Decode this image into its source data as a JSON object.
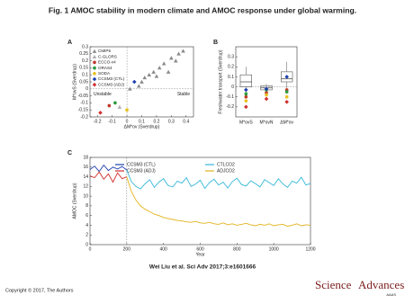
{
  "title": "Fig. 1 AMOC stability in modern climate and AMOC response under global warming.",
  "citation": "Wei Liu et al. Sci Adv 2017;3:e1601666",
  "copyright": "Copyright © 2017, The Authors",
  "logo": {
    "word1": "Science",
    "word2": "Advances",
    "org": "AAAS"
  },
  "chart_data": [
    {
      "type": "scatter",
      "panel": "A",
      "x_label": "ΔM*ov (Sverdrup)",
      "y_label": "M*ovS (Sverdrup)",
      "annotations": [
        "Unstable",
        "Stable"
      ],
      "xlim": [
        -0.25,
        0.45
      ],
      "xticks": [
        -0.2,
        -0.1,
        0,
        0.1,
        0.2,
        0.3,
        0.4
      ],
      "ylim": [
        -0.2,
        0.3
      ],
      "yticks": [
        -0.2,
        -0.15,
        -0.1,
        -0.05,
        0,
        0.05,
        0.1,
        0.15,
        0.2,
        0.25,
        0.3
      ],
      "series": [
        {
          "name": "CMIP5",
          "color": "#8a8a8a",
          "marker": "triangle",
          "x": [
            0.02,
            0.08,
            0.1,
            0.12,
            0.15,
            0.18,
            0.2,
            0.22,
            0.25,
            0.28,
            0.3,
            0.33,
            0.35,
            0.38
          ],
          "values": [
            0.0,
            0.02,
            0.05,
            0.08,
            0.1,
            0.12,
            0.09,
            0.15,
            0.18,
            0.12,
            0.22,
            0.2,
            0.25,
            0.27
          ]
        },
        {
          "name": "C-GLORS",
          "color": "#b0b0b0",
          "marker": "triangle",
          "x": [
            -0.05
          ],
          "values": [
            -0.13
          ]
        },
        {
          "name": "ECCO-v4",
          "color": "#c0392b",
          "marker": "circle",
          "x": [
            -0.12
          ],
          "values": [
            -0.12
          ]
        },
        {
          "name": "ORAS4",
          "color": "#2e9a3e",
          "marker": "circle",
          "x": [
            -0.08
          ],
          "values": [
            -0.1
          ]
        },
        {
          "name": "SODA",
          "color": "#e8c020",
          "marker": "circle",
          "x": [
            0.0
          ],
          "values": [
            -0.15
          ]
        },
        {
          "name": "CCSM3 (CTL)",
          "color": "#1f3fb0",
          "marker": "diamond",
          "x": [
            0.05
          ],
          "values": [
            0.05
          ]
        },
        {
          "name": "CCSM3 (ADJ)",
          "color": "#d03030",
          "marker": "diamond",
          "x": [
            -0.18
          ],
          "values": [
            -0.17
          ]
        }
      ]
    },
    {
      "type": "box",
      "panel": "B",
      "y_label": "Freshwater transport (Sverdrup)",
      "categories": [
        "M*ovS",
        "M*ovN",
        "ΔM*ov"
      ],
      "ylim": [
        -0.3,
        0.4
      ],
      "yticks": [
        -0.2,
        -0.1,
        0,
        0.1,
        0.2,
        0.3
      ],
      "boxes": [
        {
          "min": -0.1,
          "q1": 0.0,
          "median": 0.05,
          "q3": 0.12,
          "max": 0.2
        },
        {
          "min": -0.05,
          "q1": -0.03,
          "median": -0.01,
          "q3": 0.01,
          "max": 0.03
        },
        {
          "min": -0.02,
          "q1": 0.05,
          "median": 0.08,
          "q3": 0.15,
          "max": 0.25
        }
      ],
      "series": [
        {
          "name": "ECCO-v4",
          "color": "#c0392b",
          "marker": "circle",
          "values": [
            -0.1,
            -0.06,
            -0.03
          ]
        },
        {
          "name": "ORAS4",
          "color": "#2e9a3e",
          "marker": "circle",
          "values": [
            -0.07,
            -0.03,
            -0.05
          ]
        },
        {
          "name": "SODA",
          "color": "#e8c020",
          "marker": "circle",
          "values": [
            -0.14,
            -0.08,
            -0.1
          ]
        },
        {
          "name": "CCSM3 (CTL)",
          "color": "#1f3fb0",
          "marker": "diamond",
          "values": [
            -0.03,
            -0.02,
            0.1
          ]
        },
        {
          "name": "CCSM3 (ADJ)",
          "color": "#d03030",
          "marker": "diamond",
          "values": [
            -0.2,
            -0.12,
            -0.15
          ]
        }
      ]
    },
    {
      "type": "line",
      "panel": "C",
      "x_label": "Year",
      "y_label": "AMOC (Sverdrup)",
      "xlim": [
        0,
        1200
      ],
      "xticks": [
        0,
        200,
        400,
        600,
        800,
        1000,
        1200
      ],
      "ylim": [
        0,
        18
      ],
      "yticks": [
        0,
        2,
        4,
        6,
        8,
        10,
        12,
        14,
        16,
        18
      ],
      "x": [
        0,
        25,
        50,
        75,
        100,
        125,
        150,
        175,
        200,
        225,
        250,
        275,
        300,
        325,
        350,
        375,
        400,
        425,
        450,
        475,
        500,
        525,
        550,
        575,
        600,
        625,
        650,
        675,
        700,
        725,
        750,
        775,
        800,
        825,
        850,
        875,
        900,
        925,
        950,
        975,
        1000,
        1025,
        1050,
        1075,
        1100,
        1125,
        1150,
        1175,
        1200
      ],
      "series": [
        {
          "name": "CCSM3 (CTL)",
          "color": "#1f3fb0",
          "values": [
            15.5,
            16.2,
            15.1,
            16.4,
            15.3,
            16.0,
            15.6,
            16.1,
            15.4,
            null,
            null,
            null,
            null,
            null,
            null,
            null,
            null,
            null,
            null,
            null,
            null,
            null,
            null,
            null,
            null,
            null,
            null,
            null,
            null,
            null,
            null,
            null,
            null,
            null,
            null,
            null,
            null,
            null,
            null,
            null,
            null,
            null,
            null,
            null,
            null,
            null,
            null,
            null,
            null
          ]
        },
        {
          "name": "CCSM3 (ADJ)",
          "color": "#d03030",
          "values": [
            14.2,
            13.8,
            15.0,
            13.5,
            14.6,
            12.9,
            14.8,
            13.6,
            14.0,
            null,
            null,
            null,
            null,
            null,
            null,
            null,
            null,
            null,
            null,
            null,
            null,
            null,
            null,
            null,
            null,
            null,
            null,
            null,
            null,
            null,
            null,
            null,
            null,
            null,
            null,
            null,
            null,
            null,
            null,
            null,
            null,
            null,
            null,
            null,
            null,
            null,
            null,
            null,
            null
          ]
        },
        {
          "name": "CTLCO2",
          "color": "#35b8d8",
          "values": [
            null,
            null,
            null,
            null,
            null,
            null,
            null,
            null,
            15.4,
            13.0,
            12.0,
            11.5,
            12.6,
            13.4,
            11.8,
            12.9,
            13.6,
            12.2,
            11.9,
            13.1,
            12.7,
            13.8,
            12.0,
            12.5,
            13.3,
            11.6,
            12.8,
            13.5,
            12.3,
            12.9,
            11.7,
            13.0,
            13.7,
            12.4,
            12.1,
            13.2,
            12.6,
            11.9,
            13.4,
            12.8,
            12.2,
            13.6,
            12.5,
            11.8,
            13.1,
            12.7,
            13.9,
            12.3,
            12.6
          ]
        },
        {
          "name": "ADJCO2",
          "color": "#e2b21c",
          "values": [
            null,
            null,
            null,
            null,
            null,
            null,
            null,
            null,
            14.0,
            11.0,
            9.2,
            8.0,
            7.3,
            6.8,
            6.3,
            6.0,
            5.6,
            5.4,
            5.2,
            5.0,
            4.9,
            4.7,
            4.6,
            4.8,
            4.5,
            4.4,
            4.6,
            4.3,
            4.2,
            4.5,
            4.1,
            4.3,
            4.0,
            4.2,
            4.4,
            4.1,
            3.9,
            4.2,
            4.0,
            4.3,
            3.9,
            4.1,
            4.2,
            3.8,
            4.0,
            4.3,
            3.9,
            4.1,
            4.0
          ]
        }
      ]
    }
  ]
}
